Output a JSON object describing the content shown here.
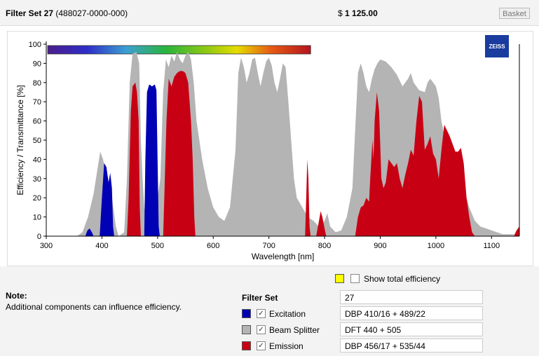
{
  "header": {
    "title_bold": "Filter Set 27",
    "title_code": "(488027-0000-000)",
    "price_prefix": "$",
    "price": "1 125.00",
    "basket_label": "Basket"
  },
  "logo": {
    "text": "ZEISS"
  },
  "options": {
    "show_total_efficiency_label": "Show total efficiency",
    "show_total_efficiency_checked": false,
    "swatch_color": "#ffff00"
  },
  "note": {
    "title": "Note:",
    "text": "Additional components can influence efficiency."
  },
  "filter_set": {
    "label": "Filter Set",
    "value": "27",
    "components": [
      {
        "name": "Excitation",
        "value": "DBP 410/16 + 489/22",
        "color": "#0000b4",
        "checked": true
      },
      {
        "name": "Beam Splitter",
        "value": "DFT 440 + 505",
        "color": "#b4b4b4",
        "checked": true
      },
      {
        "name": "Emission",
        "value": "DBP 456/17 + 535/44",
        "color": "#c80014",
        "checked": true
      }
    ]
  },
  "chart_data": {
    "type": "area",
    "xlabel": "Wavelength [nm]",
    "ylabel": "Efficiency / Transmittance [%]",
    "xlim": [
      300,
      1150
    ],
    "ylim": [
      0,
      100
    ],
    "x_ticks": [
      300,
      400,
      500,
      600,
      700,
      800,
      900,
      1000,
      1100
    ],
    "y_ticks": [
      0,
      10,
      20,
      30,
      40,
      50,
      60,
      70,
      80,
      90,
      100
    ],
    "spectrum_bar": {
      "from": 300,
      "to": 775
    },
    "series": [
      {
        "name": "Beam Splitter",
        "color": "#b4b4b4",
        "points": [
          [
            355,
            0
          ],
          [
            365,
            2
          ],
          [
            375,
            10
          ],
          [
            385,
            22
          ],
          [
            392,
            35
          ],
          [
            397,
            44
          ],
          [
            402,
            40
          ],
          [
            410,
            30
          ],
          [
            418,
            20
          ],
          [
            425,
            5
          ],
          [
            430,
            0
          ],
          [
            440,
            2
          ],
          [
            445,
            30
          ],
          [
            450,
            80
          ],
          [
            455,
            95
          ],
          [
            462,
            96
          ],
          [
            467,
            90
          ],
          [
            470,
            50
          ],
          [
            473,
            30
          ],
          [
            476,
            15
          ],
          [
            478,
            12
          ],
          [
            486,
            30
          ],
          [
            492,
            50
          ],
          [
            496,
            45
          ],
          [
            500,
            20
          ],
          [
            505,
            30
          ],
          [
            510,
            75
          ],
          [
            515,
            92
          ],
          [
            520,
            88
          ],
          [
            525,
            94
          ],
          [
            530,
            91
          ],
          [
            535,
            96
          ],
          [
            540,
            92
          ],
          [
            545,
            90
          ],
          [
            550,
            94
          ],
          [
            555,
            96
          ],
          [
            560,
            92
          ],
          [
            565,
            80
          ],
          [
            570,
            60
          ],
          [
            580,
            40
          ],
          [
            590,
            25
          ],
          [
            600,
            15
          ],
          [
            610,
            10
          ],
          [
            620,
            8
          ],
          [
            630,
            15
          ],
          [
            640,
            45
          ],
          [
            645,
            85
          ],
          [
            650,
            93
          ],
          [
            655,
            88
          ],
          [
            660,
            80
          ],
          [
            665,
            85
          ],
          [
            670,
            92
          ],
          [
            675,
            93
          ],
          [
            680,
            85
          ],
          [
            685,
            78
          ],
          [
            690,
            85
          ],
          [
            695,
            91
          ],
          [
            700,
            93
          ],
          [
            705,
            89
          ],
          [
            710,
            80
          ],
          [
            715,
            75
          ],
          [
            720,
            82
          ],
          [
            725,
            90
          ],
          [
            730,
            88
          ],
          [
            735,
            70
          ],
          [
            740,
            50
          ],
          [
            745,
            30
          ],
          [
            750,
            20
          ],
          [
            760,
            15
          ],
          [
            770,
            10
          ],
          [
            780,
            8
          ],
          [
            790,
            5
          ],
          [
            800,
            8
          ],
          [
            805,
            12
          ],
          [
            810,
            5
          ],
          [
            820,
            2
          ],
          [
            830,
            3
          ],
          [
            840,
            10
          ],
          [
            850,
            25
          ],
          [
            855,
            55
          ],
          [
            860,
            85
          ],
          [
            865,
            90
          ],
          [
            870,
            85
          ],
          [
            875,
            78
          ],
          [
            880,
            75
          ],
          [
            885,
            82
          ],
          [
            890,
            87
          ],
          [
            895,
            90
          ],
          [
            900,
            92
          ],
          [
            910,
            91
          ],
          [
            920,
            88
          ],
          [
            930,
            84
          ],
          [
            940,
            78
          ],
          [
            950,
            82
          ],
          [
            955,
            85
          ],
          [
            960,
            80
          ],
          [
            970,
            76
          ],
          [
            980,
            75
          ],
          [
            985,
            80
          ],
          [
            990,
            82
          ],
          [
            995,
            80
          ],
          [
            1000,
            78
          ],
          [
            1005,
            72
          ],
          [
            1010,
            60
          ],
          [
            1020,
            45
          ],
          [
            1030,
            40
          ],
          [
            1040,
            35
          ],
          [
            1050,
            25
          ],
          [
            1060,
            15
          ],
          [
            1070,
            8
          ],
          [
            1080,
            5
          ],
          [
            1090,
            4
          ],
          [
            1100,
            3
          ],
          [
            1110,
            2
          ],
          [
            1120,
            1
          ],
          [
            1130,
            1
          ],
          [
            1140,
            1
          ],
          [
            1150,
            0
          ]
        ]
      },
      {
        "name": "Emission",
        "color": "#c80014",
        "points": [
          [
            445,
            0
          ],
          [
            448,
            20
          ],
          [
            452,
            65
          ],
          [
            455,
            78
          ],
          [
            460,
            80
          ],
          [
            463,
            75
          ],
          [
            466,
            60
          ],
          [
            468,
            15
          ],
          [
            470,
            0
          ],
          [
            510,
            0
          ],
          [
            512,
            20
          ],
          [
            516,
            60
          ],
          [
            520,
            82
          ],
          [
            525,
            78
          ],
          [
            530,
            83
          ],
          [
            535,
            85
          ],
          [
            540,
            86
          ],
          [
            545,
            86
          ],
          [
            550,
            85
          ],
          [
            555,
            80
          ],
          [
            560,
            60
          ],
          [
            563,
            40
          ],
          [
            566,
            10
          ],
          [
            568,
            0
          ],
          [
            765,
            0
          ],
          [
            767,
            20
          ],
          [
            769,
            40
          ],
          [
            771,
            30
          ],
          [
            773,
            5
          ],
          [
            775,
            0
          ],
          [
            785,
            0
          ],
          [
            790,
            8
          ],
          [
            793,
            13
          ],
          [
            796,
            10
          ],
          [
            800,
            4
          ],
          [
            803,
            0
          ],
          [
            855,
            0
          ],
          [
            860,
            10
          ],
          [
            865,
            15
          ],
          [
            870,
            16
          ],
          [
            875,
            20
          ],
          [
            880,
            18
          ],
          [
            882,
            30
          ],
          [
            886,
            50
          ],
          [
            888,
            40
          ],
          [
            890,
            60
          ],
          [
            894,
            75
          ],
          [
            898,
            65
          ],
          [
            902,
            30
          ],
          [
            906,
            25
          ],
          [
            910,
            28
          ],
          [
            915,
            40
          ],
          [
            920,
            38
          ],
          [
            925,
            36
          ],
          [
            930,
            38
          ],
          [
            935,
            30
          ],
          [
            940,
            25
          ],
          [
            945,
            32
          ],
          [
            950,
            38
          ],
          [
            955,
            45
          ],
          [
            960,
            42
          ],
          [
            965,
            60
          ],
          [
            970,
            73
          ],
          [
            975,
            70
          ],
          [
            980,
            45
          ],
          [
            985,
            48
          ],
          [
            990,
            52
          ],
          [
            995,
            43
          ],
          [
            1000,
            40
          ],
          [
            1005,
            30
          ],
          [
            1010,
            45
          ],
          [
            1015,
            58
          ],
          [
            1020,
            55
          ],
          [
            1025,
            52
          ],
          [
            1030,
            48
          ],
          [
            1035,
            44
          ],
          [
            1040,
            44
          ],
          [
            1045,
            46
          ],
          [
            1050,
            38
          ],
          [
            1055,
            20
          ],
          [
            1060,
            10
          ],
          [
            1065,
            2
          ],
          [
            1070,
            0
          ],
          [
            1140,
            0
          ],
          [
            1145,
            3
          ],
          [
            1150,
            5
          ]
        ]
      },
      {
        "name": "Excitation",
        "color": "#0000b4",
        "points": [
          [
            370,
            0
          ],
          [
            374,
            3
          ],
          [
            378,
            4
          ],
          [
            382,
            2
          ],
          [
            385,
            0
          ],
          [
            396,
            0
          ],
          [
            400,
            20
          ],
          [
            404,
            38
          ],
          [
            408,
            36
          ],
          [
            412,
            28
          ],
          [
            415,
            33
          ],
          [
            418,
            25
          ],
          [
            420,
            5
          ],
          [
            422,
            0
          ],
          [
            476,
            0
          ],
          [
            478,
            40
          ],
          [
            481,
            75
          ],
          [
            485,
            79
          ],
          [
            490,
            78
          ],
          [
            495,
            79
          ],
          [
            498,
            76
          ],
          [
            500,
            40
          ],
          [
            502,
            5
          ],
          [
            504,
            0
          ]
        ]
      }
    ]
  }
}
